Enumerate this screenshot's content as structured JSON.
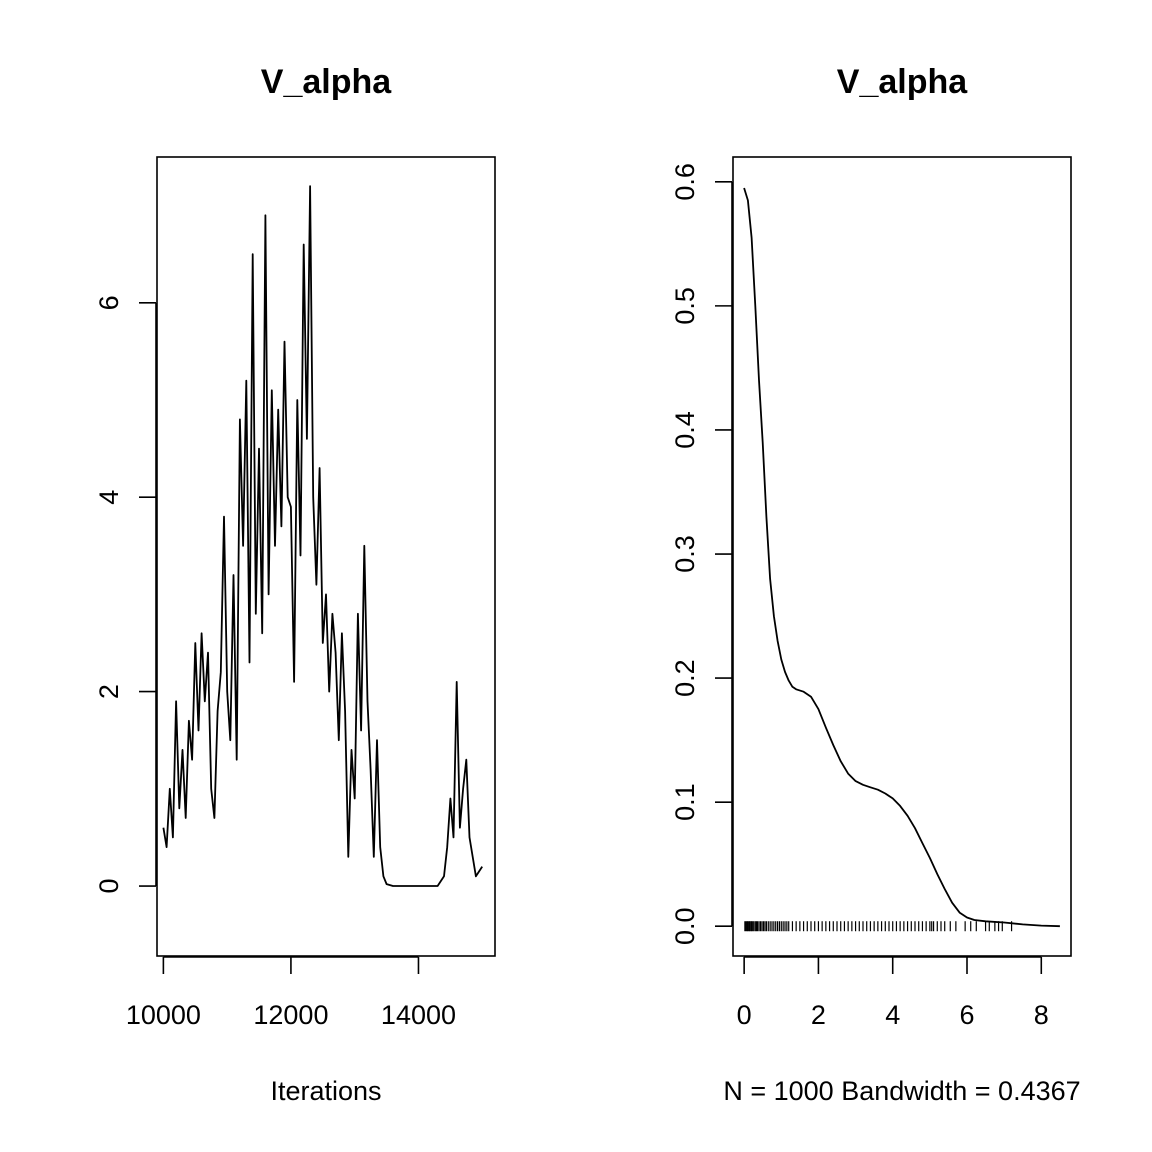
{
  "chart_data": [
    {
      "type": "line",
      "title": "V_alpha",
      "xlabel": "Iterations",
      "ylabel": "",
      "xlim": [
        9900,
        15200
      ],
      "ylim": [
        -0.72,
        7.5
      ],
      "xticks": [
        10000,
        12000,
        14000
      ],
      "xtick_labels": [
        "10000",
        "12000",
        "14000"
      ],
      "yticks": [
        0,
        2,
        4,
        6
      ],
      "ytick_labels": [
        "0",
        "2",
        "4",
        "6"
      ],
      "x": [
        10000,
        10050,
        10100,
        10150,
        10200,
        10250,
        10300,
        10350,
        10400,
        10450,
        10500,
        10550,
        10600,
        10650,
        10700,
        10750,
        10800,
        10850,
        10900,
        10950,
        11000,
        11050,
        11100,
        11150,
        11200,
        11250,
        11300,
        11350,
        11400,
        11450,
        11500,
        11550,
        11600,
        11650,
        11700,
        11750,
        11800,
        11850,
        11900,
        11950,
        12000,
        12050,
        12100,
        12150,
        12200,
        12250,
        12300,
        12350,
        12400,
        12450,
        12500,
        12550,
        12600,
        12650,
        12700,
        12750,
        12800,
        12850,
        12900,
        12950,
        13000,
        13050,
        13100,
        13150,
        13200,
        13250,
        13300,
        13350,
        13400,
        13450,
        13500,
        13600,
        13700,
        13800,
        13900,
        14000,
        14100,
        14200,
        14300,
        14400,
        14450,
        14500,
        14550,
        14600,
        14650,
        14700,
        14750,
        14800,
        14850,
        14900,
        14950,
        15000
      ],
      "y": [
        0.6,
        0.4,
        1.0,
        0.5,
        1.9,
        0.8,
        1.4,
        0.7,
        1.7,
        1.3,
        2.5,
        1.6,
        2.6,
        1.9,
        2.4,
        1.0,
        0.7,
        1.8,
        2.2,
        3.8,
        2.0,
        1.5,
        3.2,
        1.3,
        4.8,
        3.5,
        5.2,
        2.3,
        6.5,
        2.8,
        4.5,
        2.6,
        6.9,
        3.0,
        5.1,
        3.5,
        4.9,
        3.7,
        5.6,
        4.0,
        3.9,
        2.1,
        5.0,
        3.4,
        6.6,
        4.6,
        7.2,
        4.0,
        3.1,
        4.3,
        2.5,
        3.0,
        2.0,
        2.8,
        2.4,
        1.5,
        2.6,
        1.8,
        0.3,
        1.4,
        0.9,
        2.8,
        1.6,
        3.5,
        1.9,
        1.2,
        0.3,
        1.5,
        0.4,
        0.1,
        0.02,
        0,
        0,
        0,
        0,
        0,
        0,
        0,
        0,
        0.1,
        0.4,
        0.9,
        0.5,
        2.1,
        0.6,
        1.0,
        1.3,
        0.5,
        0.3,
        0.1,
        0.15,
        0.2
      ]
    },
    {
      "type": "line",
      "title": "V_alpha",
      "xlabel": "N = 1000   Bandwidth = 0.4367",
      "ylabel": "",
      "xlim": [
        -0.3,
        8.8
      ],
      "ylim": [
        -0.024,
        0.62
      ],
      "xticks": [
        0,
        2,
        4,
        6,
        8
      ],
      "xtick_labels": [
        "0",
        "2",
        "4",
        "6",
        "8"
      ],
      "yticks": [
        0.0,
        0.1,
        0.2,
        0.3,
        0.4,
        0.5,
        0.6
      ],
      "ytick_labels": [
        "0.0",
        "0.1",
        "0.2",
        "0.3",
        "0.4",
        "0.5",
        "0.6"
      ],
      "x": [
        0.0,
        0.1,
        0.2,
        0.3,
        0.4,
        0.5,
        0.6,
        0.7,
        0.8,
        0.9,
        1.0,
        1.1,
        1.2,
        1.3,
        1.4,
        1.6,
        1.8,
        2.0,
        2.2,
        2.4,
        2.6,
        2.8,
        3.0,
        3.2,
        3.4,
        3.6,
        3.8,
        4.0,
        4.2,
        4.4,
        4.6,
        4.8,
        5.0,
        5.2,
        5.4,
        5.6,
        5.8,
        6.0,
        6.2,
        6.5,
        7.0,
        7.5,
        8.0,
        8.5
      ],
      "y": [
        0.595,
        0.585,
        0.555,
        0.5,
        0.44,
        0.39,
        0.33,
        0.28,
        0.25,
        0.23,
        0.215,
        0.205,
        0.198,
        0.193,
        0.191,
        0.189,
        0.185,
        0.175,
        0.16,
        0.146,
        0.133,
        0.123,
        0.117,
        0.114,
        0.112,
        0.11,
        0.107,
        0.103,
        0.097,
        0.089,
        0.079,
        0.067,
        0.055,
        0.042,
        0.03,
        0.019,
        0.011,
        0.007,
        0.005,
        0.004,
        0.003,
        0.0015,
        0.0005,
        0.0
      ],
      "rug": [
        0.02,
        0.05,
        0.08,
        0.1,
        0.13,
        0.15,
        0.18,
        0.2,
        0.23,
        0.26,
        0.3,
        0.33,
        0.36,
        0.4,
        0.44,
        0.48,
        0.52,
        0.56,
        0.6,
        0.65,
        0.7,
        0.75,
        0.8,
        0.85,
        0.9,
        0.95,
        1.0,
        1.05,
        1.1,
        1.15,
        1.2,
        1.3,
        1.4,
        1.5,
        1.6,
        1.7,
        1.8,
        1.9,
        2.0,
        2.1,
        2.2,
        2.3,
        2.4,
        2.5,
        2.6,
        2.7,
        2.8,
        2.9,
        3.0,
        3.1,
        3.2,
        3.3,
        3.4,
        3.5,
        3.6,
        3.7,
        3.8,
        3.9,
        4.0,
        4.1,
        4.2,
        4.3,
        4.4,
        4.5,
        4.6,
        4.7,
        4.8,
        4.9,
        5.0,
        5.05,
        5.1,
        5.2,
        5.3,
        5.4,
        5.55,
        5.7,
        5.95,
        6.1,
        6.25,
        6.5,
        6.6,
        6.75,
        6.85,
        6.95,
        7.2
      ]
    }
  ]
}
